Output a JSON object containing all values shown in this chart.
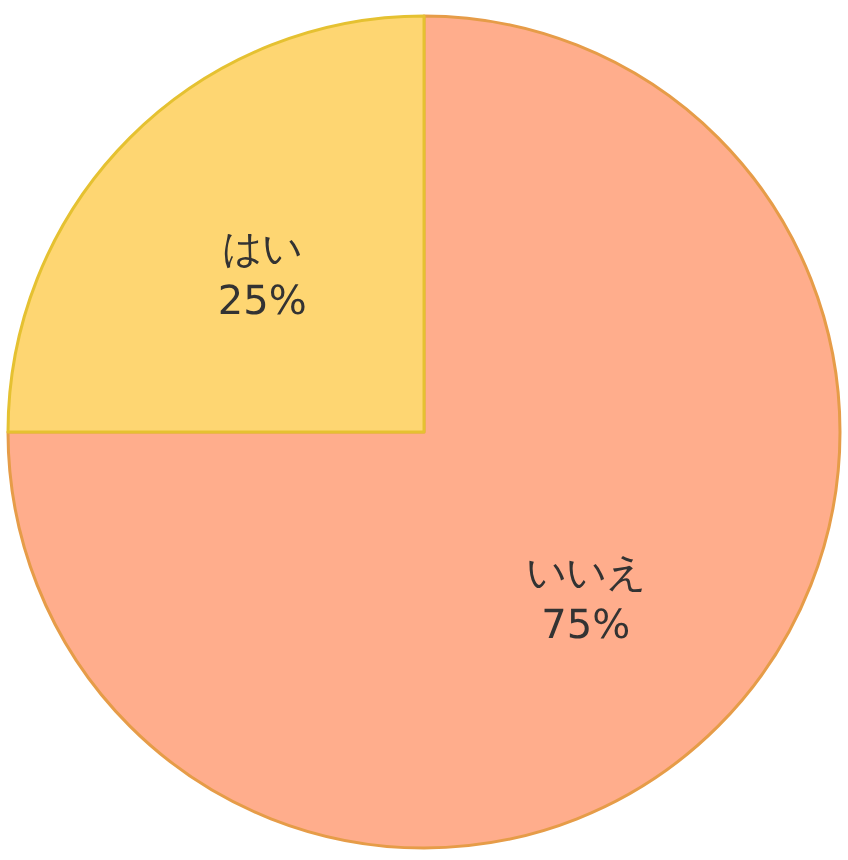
{
  "chart_data": {
    "type": "pie",
    "categories": [
      "いいえ",
      "はい"
    ],
    "values": [
      75,
      25
    ],
    "value_labels": [
      "75%",
      "25%"
    ],
    "colors": [
      "#ffad8c",
      "#fed672"
    ]
  }
}
